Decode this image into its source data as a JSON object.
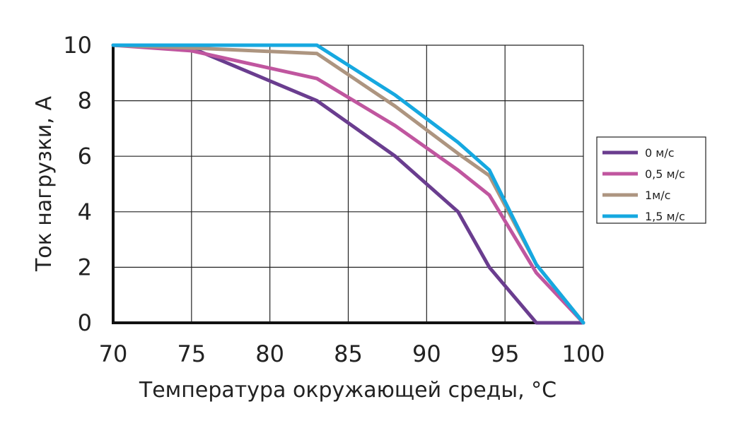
{
  "chart_data": {
    "type": "line",
    "title": "",
    "xlabel": "Температура окружающей среды, °C",
    "ylabel": "Ток нагрузки, А",
    "xlim": [
      70,
      100
    ],
    "ylim": [
      0,
      10
    ],
    "xticks": [
      "70",
      "75",
      "80",
      "85",
      "90",
      "95",
      "100"
    ],
    "yticks": [
      "0",
      "2",
      "4",
      "6",
      "8",
      "10"
    ],
    "grid": true,
    "legend_position": "right",
    "series": [
      {
        "name": "0 м/с",
        "color": "#6a3d8f",
        "x": [
          70,
          75,
          83,
          88,
          92,
          94,
          97,
          100
        ],
        "y": [
          10,
          9.9,
          8,
          6,
          4,
          2,
          0,
          0
        ]
      },
      {
        "name": "0,5 м/с",
        "color": "#c0569f",
        "x": [
          70,
          75,
          83,
          88,
          92,
          94,
          97,
          100
        ],
        "y": [
          10,
          9.8,
          8.8,
          7.1,
          5.5,
          4.6,
          1.8,
          0
        ]
      },
      {
        "name": "1м/с",
        "color": "#ad9580",
        "x": [
          70,
          75,
          83,
          88,
          92,
          94,
          97,
          100
        ],
        "y": [
          10,
          9.9,
          9.7,
          7.8,
          6.1,
          5.3,
          2.1,
          0
        ]
      },
      {
        "name": "1,5 м/с",
        "color": "#16a8e0",
        "x": [
          70,
          75,
          83,
          88,
          92,
          94,
          97,
          100
        ],
        "y": [
          10,
          10,
          10,
          8.2,
          6.5,
          5.5,
          2.1,
          0
        ]
      }
    ]
  }
}
